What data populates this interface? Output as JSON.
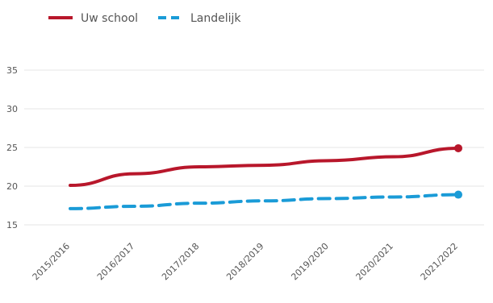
{
  "chart_data": {
    "type": "line",
    "categories": [
      "2015/2016",
      "2016/2017",
      "2017/2018",
      "2018/2019",
      "2019/2020",
      "2020/2021",
      "2021/2022"
    ],
    "series": [
      {
        "name": "Uw school",
        "color": "#b8172b",
        "style": "solid",
        "values": [
          20.1,
          21.6,
          22.5,
          22.7,
          23.3,
          23.8,
          24.9
        ]
      },
      {
        "name": "Landelijk",
        "color": "#1a9bd7",
        "style": "dashed",
        "values": [
          17.1,
          17.4,
          17.8,
          18.1,
          18.4,
          18.6,
          18.9
        ]
      }
    ],
    "yticks": [
      15,
      20,
      25,
      30,
      35
    ],
    "ylim": [
      15,
      35
    ],
    "grid": true,
    "legend": "top-left"
  }
}
